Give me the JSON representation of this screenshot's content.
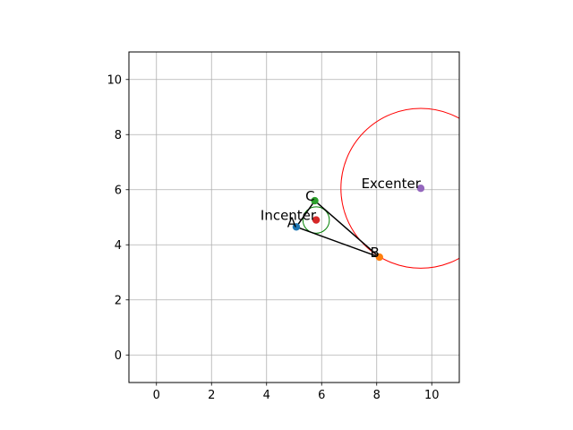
{
  "chart_data": {
    "type": "scatter",
    "title": "",
    "xlabel": "",
    "ylabel": "",
    "xlim": [
      -1,
      11
    ],
    "ylim": [
      -1,
      11
    ],
    "grid": true,
    "aspect": "equal",
    "x_ticks": [
      0,
      2,
      4,
      6,
      8,
      10
    ],
    "y_ticks": [
      0,
      2,
      4,
      6,
      8,
      10
    ],
    "x_tick_labels": [
      "0",
      "2",
      "4",
      "6",
      "8",
      "10"
    ],
    "y_tick_labels": [
      "0",
      "2",
      "4",
      "6",
      "8",
      "10"
    ],
    "points": [
      {
        "label": "A",
        "x": 5.08,
        "y": 4.65,
        "color": "#1f77b4"
      },
      {
        "label": "B",
        "x": 8.1,
        "y": 3.55,
        "color": "#ff7f0e"
      },
      {
        "label": "C",
        "x": 5.75,
        "y": 5.6,
        "color": "#2ca02c"
      },
      {
        "label": "Incenter",
        "x": 5.8,
        "y": 4.9,
        "color": "#d62728"
      },
      {
        "label": "Excenter",
        "x": 9.6,
        "y": 6.05,
        "color": "#9467bd"
      }
    ],
    "triangle": {
      "vertices": [
        "A",
        "B",
        "C"
      ],
      "color": "#000000"
    },
    "circles": [
      {
        "name": "incircle",
        "cx": 5.8,
        "cy": 4.9,
        "r": 0.48,
        "color": "#008000"
      },
      {
        "name": "excircle",
        "cx": 9.6,
        "cy": 6.05,
        "r": 2.9,
        "color": "#ff0000"
      }
    ]
  }
}
